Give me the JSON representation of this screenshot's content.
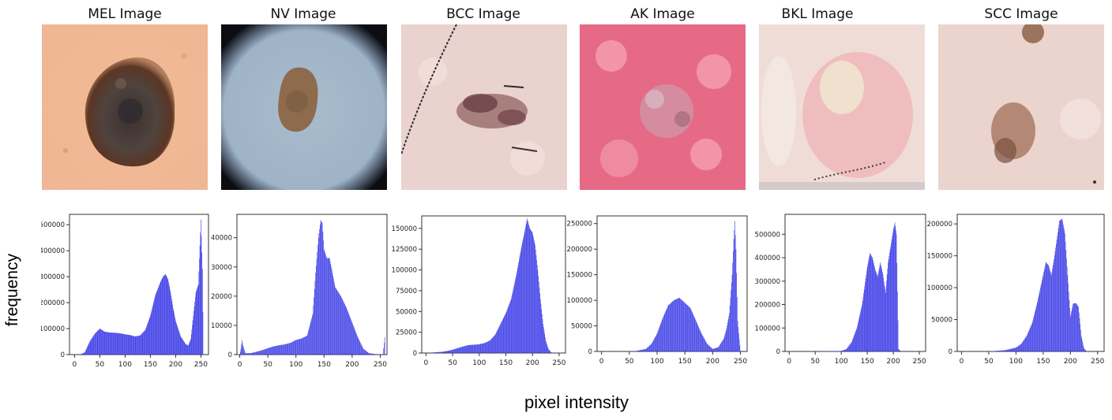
{
  "figure": {
    "ylabel": "frequency",
    "xlabel": "pixel intensity"
  },
  "colors": {
    "bar": "#3838e6",
    "axis": "#333333"
  },
  "chart_data": [
    {
      "type": "bar",
      "title": "MEL Image",
      "image": "melanoma-lesion",
      "xlabel": "pixel intensity",
      "ylabel": "frequency",
      "xlim": [
        -10,
        265
      ],
      "ylim": [
        0,
        540000
      ],
      "xticks": [
        0,
        50,
        100,
        150,
        200,
        250
      ],
      "yticks": [
        0,
        100000,
        200000,
        300000,
        400000,
        500000
      ],
      "x": [
        0,
        10,
        20,
        30,
        40,
        50,
        60,
        70,
        80,
        90,
        100,
        110,
        120,
        130,
        140,
        150,
        160,
        170,
        175,
        180,
        185,
        190,
        195,
        200,
        210,
        220,
        225,
        230,
        235,
        240,
        245,
        250,
        253,
        255
      ],
      "y": [
        0,
        0,
        8000,
        50000,
        80000,
        100000,
        88000,
        85000,
        84000,
        82000,
        78000,
        75000,
        70000,
        74000,
        95000,
        150000,
        230000,
        280000,
        300000,
        310000,
        290000,
        240000,
        180000,
        130000,
        70000,
        40000,
        35000,
        60000,
        150000,
        240000,
        270000,
        520000,
        330000,
        0
      ]
    },
    {
      "type": "bar",
      "title": "NV Image",
      "image": "nevus-lesion",
      "xlabel": "pixel intensity",
      "ylabel": "frequency",
      "xlim": [
        -5,
        262
      ],
      "ylim": [
        0,
        48000
      ],
      "xticks": [
        0,
        50,
        100,
        150,
        200,
        250
      ],
      "yticks": [
        0,
        10000,
        20000,
        30000,
        40000
      ],
      "x": [
        0,
        2,
        4,
        6,
        10,
        20,
        30,
        40,
        50,
        60,
        70,
        80,
        90,
        100,
        110,
        120,
        130,
        135,
        140,
        144,
        147,
        150,
        155,
        160,
        165,
        170,
        180,
        190,
        200,
        210,
        220,
        230,
        240,
        250,
        255,
        258
      ],
      "y": [
        0,
        2000,
        5000,
        3000,
        500,
        500,
        1000,
        1500,
        2200,
        2800,
        3200,
        3500,
        4000,
        5000,
        5500,
        6500,
        14000,
        28000,
        40000,
        46000,
        45000,
        36000,
        33000,
        33000,
        28000,
        23000,
        20000,
        16000,
        11000,
        6000,
        2000,
        500,
        200,
        100,
        200,
        6000
      ]
    },
    {
      "type": "bar",
      "title": "BCC Image",
      "image": "bcc-lesion",
      "xlabel": "pixel intensity",
      "ylabel": "frequency",
      "xlim": [
        -8,
        262
      ],
      "ylim": [
        0,
        165000
      ],
      "xticks": [
        0,
        50,
        100,
        150,
        200,
        250
      ],
      "yticks": [
        0,
        25000,
        50000,
        75000,
        100000,
        125000,
        150000
      ],
      "x": [
        0,
        10,
        20,
        30,
        40,
        50,
        60,
        70,
        80,
        90,
        100,
        110,
        120,
        130,
        140,
        150,
        160,
        170,
        180,
        185,
        190,
        195,
        200,
        205,
        210,
        215,
        220,
        225,
        230,
        235
      ],
      "y": [
        0,
        500,
        1000,
        1500,
        2500,
        4000,
        6000,
        8000,
        9500,
        10000,
        10500,
        12000,
        15000,
        22000,
        35000,
        48000,
        65000,
        95000,
        130000,
        145000,
        162000,
        150000,
        145000,
        130000,
        100000,
        65000,
        35000,
        15000,
        5000,
        1000
      ]
    },
    {
      "type": "bar",
      "title": "AK Image",
      "image": "ak-lesion",
      "xlabel": "pixel intensity",
      "ylabel": "frequency",
      "xlim": [
        -8,
        262
      ],
      "ylim": [
        0,
        265000
      ],
      "xticks": [
        0,
        50,
        100,
        150,
        200,
        250
      ],
      "yticks": [
        0,
        50000,
        100000,
        150000,
        200000,
        250000
      ],
      "x": [
        0,
        30,
        60,
        80,
        90,
        100,
        110,
        120,
        130,
        140,
        150,
        160,
        170,
        180,
        190,
        200,
        210,
        220,
        225,
        230,
        235,
        238,
        240,
        242,
        245,
        250
      ],
      "y": [
        0,
        0,
        500,
        5000,
        15000,
        35000,
        65000,
        90000,
        100000,
        105000,
        95000,
        85000,
        60000,
        35000,
        15000,
        5000,
        8000,
        25000,
        45000,
        75000,
        150000,
        220000,
        255000,
        200000,
        60000,
        0
      ]
    },
    {
      "type": "bar",
      "title": "BKL Image",
      "image": "bkl-lesion",
      "xlabel": "pixel intensity",
      "ylabel": "frequency",
      "xlim": [
        -8,
        262
      ],
      "ylim": [
        0,
        585000
      ],
      "xticks": [
        0,
        50,
        100,
        150,
        200,
        250
      ],
      "yticks": [
        0,
        100000,
        200000,
        300000,
        400000,
        500000
      ],
      "x": [
        0,
        50,
        100,
        110,
        120,
        130,
        140,
        150,
        155,
        160,
        165,
        170,
        175,
        180,
        185,
        190,
        195,
        200,
        203,
        206,
        210,
        215
      ],
      "y": [
        0,
        0,
        2000,
        10000,
        40000,
        100000,
        200000,
        360000,
        420000,
        400000,
        350000,
        320000,
        380000,
        330000,
        250000,
        380000,
        450000,
        520000,
        550000,
        500000,
        10000,
        0
      ]
    },
    {
      "type": "bar",
      "title": "SCC Image",
      "image": "scc-lesion",
      "xlabel": "pixel intensity",
      "ylabel": "frequency",
      "xlim": [
        -8,
        262
      ],
      "ylim": [
        0,
        215000
      ],
      "xticks": [
        0,
        50,
        100,
        150,
        200,
        250
      ],
      "yticks": [
        0,
        50000,
        100000,
        150000,
        200000
      ],
      "x": [
        0,
        50,
        80,
        100,
        110,
        120,
        130,
        140,
        150,
        155,
        160,
        165,
        170,
        175,
        180,
        185,
        190,
        195,
        200,
        205,
        210,
        215,
        220,
        225,
        230
      ],
      "y": [
        0,
        0,
        2000,
        6000,
        12000,
        25000,
        45000,
        80000,
        120000,
        140000,
        135000,
        120000,
        145000,
        175000,
        205000,
        208000,
        185000,
        120000,
        55000,
        75000,
        76000,
        70000,
        25000,
        5000,
        0
      ]
    }
  ]
}
